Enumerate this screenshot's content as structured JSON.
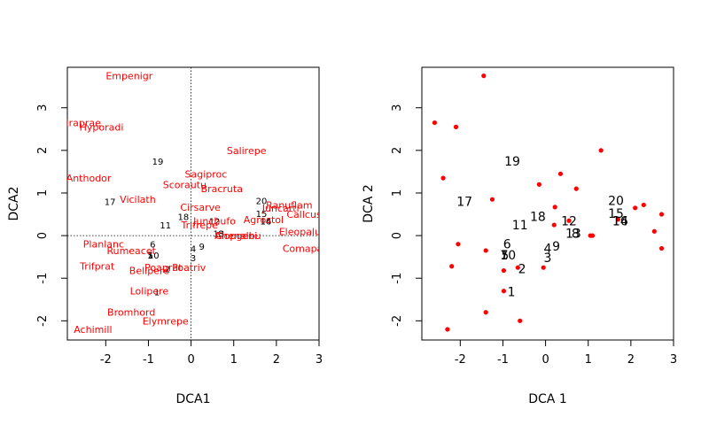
{
  "chart_data": [
    {
      "type": "scatter",
      "title": "",
      "xlabel": "DCA1",
      "ylabel": "DCA2",
      "xlim": [
        -2.9,
        3.0
      ],
      "ylim": [
        -2.45,
        3.95
      ],
      "x_ticks": [
        -2,
        -1,
        0,
        1,
        2,
        3
      ],
      "y_ticks": [
        -2,
        -1,
        0,
        1,
        2,
        3
      ],
      "x_tick_labels": [
        "-2",
        "-1",
        "0",
        "1",
        "2",
        "3"
      ],
      "y_tick_labels": [
        "-2",
        "-1",
        "0",
        "1",
        "2",
        "3"
      ],
      "reference_lines": "dotted lines at x = 0 and y = 0",
      "site_color": "#000000",
      "species_color": "#ff0000",
      "sites": [
        {
          "label": "1",
          "x": -0.8,
          "y": -1.32
        },
        {
          "label": "2",
          "x": -0.55,
          "y": -0.78
        },
        {
          "label": "3",
          "x": 0.05,
          "y": -0.52
        },
        {
          "label": "4",
          "x": 0.05,
          "y": -0.3
        },
        {
          "label": "5",
          "x": -0.95,
          "y": -0.45
        },
        {
          "label": "6",
          "x": -0.9,
          "y": -0.2
        },
        {
          "label": "7",
          "x": -0.97,
          "y": -0.45
        },
        {
          "label": "8",
          "x": 0.7,
          "y": 0.05
        },
        {
          "label": "9",
          "x": 0.25,
          "y": -0.25
        },
        {
          "label": "10",
          "x": -0.88,
          "y": -0.45
        },
        {
          "label": "11",
          "x": -0.6,
          "y": 0.25
        },
        {
          "label": "12",
          "x": 0.55,
          "y": 0.35
        },
        {
          "label": "13",
          "x": 0.65,
          "y": 0.05
        },
        {
          "label": "14",
          "x": 1.75,
          "y": 0.35
        },
        {
          "label": "15",
          "x": 1.65,
          "y": 0.52
        },
        {
          "label": "16",
          "x": 1.75,
          "y": 0.35
        },
        {
          "label": "17",
          "x": -1.9,
          "y": 0.8
        },
        {
          "label": "18",
          "x": -0.18,
          "y": 0.45
        },
        {
          "label": "19",
          "x": -0.78,
          "y": 1.75
        },
        {
          "label": "20",
          "x": 1.65,
          "y": 0.82
        }
      ],
      "species": [
        {
          "label": "Empenigr",
          "x": -1.45,
          "y": 3.75
        },
        {
          "label": "Hyporadi",
          "x": -2.1,
          "y": 2.55
        },
        {
          "label": "Airaprae",
          "x": -2.6,
          "y": 2.65
        },
        {
          "label": "Salirepe",
          "x": 1.3,
          "y": 2.0
        },
        {
          "label": "Anthodor",
          "x": -2.4,
          "y": 1.35
        },
        {
          "label": "Sagiproc",
          "x": 0.35,
          "y": 1.45
        },
        {
          "label": "Scorautu",
          "x": -0.15,
          "y": 1.2
        },
        {
          "label": "Bracruta",
          "x": 0.72,
          "y": 1.1
        },
        {
          "label": "Vicilath",
          "x": -1.25,
          "y": 0.85
        },
        {
          "label": "Ranuflam",
          "x": 2.3,
          "y": 0.72
        },
        {
          "label": "Juncarti",
          "x": 2.1,
          "y": 0.65
        },
        {
          "label": "Callcusp",
          "x": 2.72,
          "y": 0.5
        },
        {
          "label": "Cirsarve",
          "x": 0.22,
          "y": 0.67
        },
        {
          "label": "Juncbufo",
          "x": 0.55,
          "y": 0.35
        },
        {
          "label": "Agrostol",
          "x": 1.7,
          "y": 0.38
        },
        {
          "label": "Trifrepe",
          "x": 0.2,
          "y": 0.25
        },
        {
          "label": "Eleopalu",
          "x": 2.55,
          "y": 0.1
        },
        {
          "label": "Alopgeni",
          "x": 1.05,
          "y": 0.0
        },
        {
          "label": "Chenalbu",
          "x": 1.1,
          "y": 0.0
        },
        {
          "label": "Comapalu",
          "x": 2.72,
          "y": -0.3
        },
        {
          "label": "Planlanc",
          "x": -2.05,
          "y": -0.2
        },
        {
          "label": "Rumeacet",
          "x": -1.4,
          "y": -0.35
        },
        {
          "label": "Trifprat",
          "x": -2.2,
          "y": -0.72
        },
        {
          "label": "Bellpere",
          "x": -0.98,
          "y": -0.82
        },
        {
          "label": "Poaprat",
          "x": -0.65,
          "y": -0.75
        },
        {
          "label": "Poatriv",
          "x": -0.05,
          "y": -0.75
        },
        {
          "label": "Lolipere",
          "x": -0.98,
          "y": -1.3
        },
        {
          "label": "Bromhord",
          "x": -1.4,
          "y": -1.8
        },
        {
          "label": "Elymrepe",
          "x": -0.6,
          "y": -2.0
        },
        {
          "label": "Achimill",
          "x": -2.3,
          "y": -2.2
        }
      ]
    },
    {
      "type": "scatter",
      "title": "",
      "xlabel": "DCA 1",
      "ylabel": "DCA 2",
      "xlim": [
        -2.9,
        3.0
      ],
      "ylim": [
        -2.45,
        3.95
      ],
      "x_ticks": [
        -2,
        -1,
        0,
        1,
        2,
        3
      ],
      "y_ticks": [
        -2,
        -1,
        0,
        1,
        2,
        3
      ],
      "x_tick_labels": [
        "-2",
        "-1",
        "0",
        "1",
        "2",
        "3"
      ],
      "y_tick_labels": [
        "-2",
        "-1",
        "0",
        "1",
        "2",
        "3"
      ],
      "site_color": "#000000",
      "species_color": "#ff0000",
      "note": "same site and species coordinates as panel 1; species drawn as red points only"
    }
  ]
}
